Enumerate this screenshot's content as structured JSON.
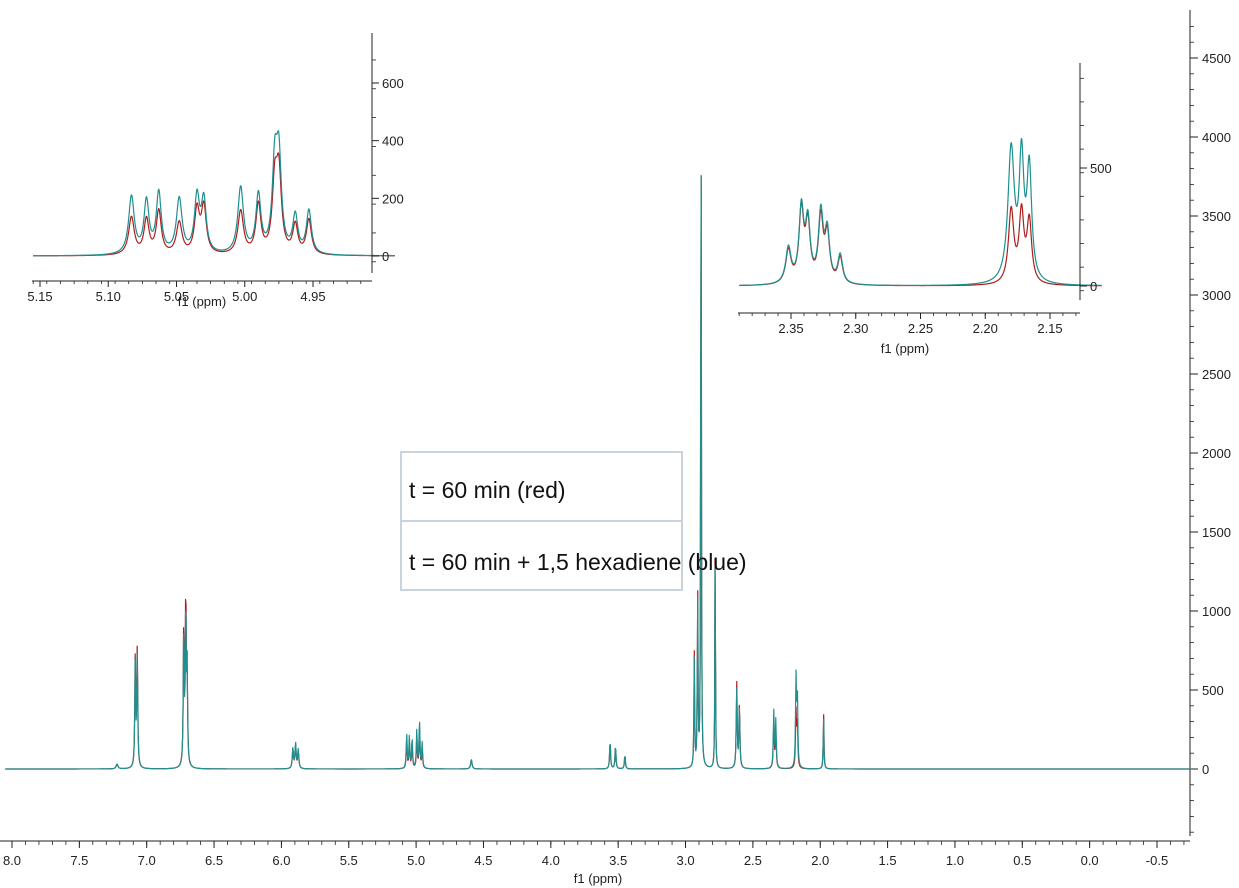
{
  "chart_data": [
    {
      "type": "line",
      "role": "main-spectrum",
      "xlabel": "f1 (ppm)",
      "ylabel": "",
      "xlim": [
        8.05,
        -0.75
      ],
      "ylim": [
        -500,
        4800
      ],
      "x_ticks": [
        "8.0",
        "7.5",
        "7.0",
        "6.5",
        "6.0",
        "5.5",
        "5.0",
        "4.5",
        "4.0",
        "3.5",
        "3.0",
        "2.5",
        "2.0",
        "1.5",
        "1.0",
        "0.5",
        "0.0",
        "-0.5"
      ],
      "y_ticks": [
        "0",
        "500",
        "1000",
        "1500",
        "2000",
        "2500",
        "3000",
        "3500",
        "4000",
        "4500"
      ],
      "y_axis_side": "right",
      "series": [
        {
          "name": "t = 60 min (red)",
          "color": "#b01c1c",
          "peaks": [
            {
              "x": 7.22,
              "y": 30,
              "w": 0.008
            },
            {
              "x": 7.085,
              "y": 700,
              "w": 0.004
            },
            {
              "x": 7.07,
              "y": 770,
              "w": 0.004
            },
            {
              "x": 6.725,
              "y": 910,
              "w": 0.004
            },
            {
              "x": 6.71,
              "y": 1100,
              "w": 0.004
            },
            {
              "x": 6.7,
              "y": 570,
              "w": 0.004
            },
            {
              "x": 5.915,
              "y": 120,
              "w": 0.005
            },
            {
              "x": 5.895,
              "y": 150,
              "w": 0.005
            },
            {
              "x": 5.875,
              "y": 110,
              "w": 0.005
            },
            {
              "x": 5.07,
              "y": 180,
              "w": 0.004
            },
            {
              "x": 5.05,
              "y": 170,
              "w": 0.004
            },
            {
              "x": 5.03,
              "y": 160,
              "w": 0.004
            },
            {
              "x": 4.995,
              "y": 190,
              "w": 0.004
            },
            {
              "x": 4.975,
              "y": 260,
              "w": 0.004
            },
            {
              "x": 4.955,
              "y": 130,
              "w": 0.004
            },
            {
              "x": 4.59,
              "y": 60,
              "w": 0.006
            },
            {
              "x": 3.56,
              "y": 180,
              "w": 0.004
            },
            {
              "x": 3.52,
              "y": 150,
              "w": 0.004
            },
            {
              "x": 3.45,
              "y": 90,
              "w": 0.004
            },
            {
              "x": 2.935,
              "y": 720,
              "w": 0.003
            },
            {
              "x": 2.91,
              "y": 1120,
              "w": 0.003
            },
            {
              "x": 2.885,
              "y": 4800,
              "w": 0.0025
            },
            {
              "x": 2.78,
              "y": 1540,
              "w": 0.0025
            },
            {
              "x": 2.62,
              "y": 540,
              "w": 0.004
            },
            {
              "x": 2.6,
              "y": 420,
              "w": 0.004
            },
            {
              "x": 2.345,
              "y": 300,
              "w": 0.004
            },
            {
              "x": 2.33,
              "y": 250,
              "w": 0.004
            },
            {
              "x": 2.18,
              "y": 350,
              "w": 0.004
            },
            {
              "x": 2.17,
              "y": 310,
              "w": 0.004
            },
            {
              "x": 1.975,
              "y": 360,
              "w": 0.003
            }
          ]
        },
        {
          "name": "t = 60 min + 1,5 hexadiene (blue)",
          "color": "#1f8f8f",
          "peaks": [
            {
              "x": 7.22,
              "y": 30,
              "w": 0.008
            },
            {
              "x": 7.085,
              "y": 660,
              "w": 0.004
            },
            {
              "x": 7.07,
              "y": 720,
              "w": 0.004
            },
            {
              "x": 6.725,
              "y": 870,
              "w": 0.004
            },
            {
              "x": 6.71,
              "y": 1020,
              "w": 0.004
            },
            {
              "x": 6.7,
              "y": 530,
              "w": 0.004
            },
            {
              "x": 5.915,
              "y": 130,
              "w": 0.005
            },
            {
              "x": 5.895,
              "y": 160,
              "w": 0.005
            },
            {
              "x": 5.875,
              "y": 120,
              "w": 0.005
            },
            {
              "x": 5.07,
              "y": 220,
              "w": 0.004
            },
            {
              "x": 5.05,
              "y": 200,
              "w": 0.004
            },
            {
              "x": 5.03,
              "y": 190,
              "w": 0.004
            },
            {
              "x": 4.995,
              "y": 240,
              "w": 0.004
            },
            {
              "x": 4.975,
              "y": 310,
              "w": 0.004
            },
            {
              "x": 4.955,
              "y": 160,
              "w": 0.004
            },
            {
              "x": 4.59,
              "y": 60,
              "w": 0.006
            },
            {
              "x": 3.56,
              "y": 180,
              "w": 0.004
            },
            {
              "x": 3.52,
              "y": 150,
              "w": 0.004
            },
            {
              "x": 3.45,
              "y": 90,
              "w": 0.004
            },
            {
              "x": 2.935,
              "y": 680,
              "w": 0.003
            },
            {
              "x": 2.91,
              "y": 1080,
              "w": 0.003
            },
            {
              "x": 2.885,
              "y": 4800,
              "w": 0.0025
            },
            {
              "x": 2.78,
              "y": 1480,
              "w": 0.0025
            },
            {
              "x": 2.62,
              "y": 500,
              "w": 0.004
            },
            {
              "x": 2.6,
              "y": 400,
              "w": 0.004
            },
            {
              "x": 2.345,
              "y": 360,
              "w": 0.004
            },
            {
              "x": 2.33,
              "y": 300,
              "w": 0.004
            },
            {
              "x": 2.18,
              "y": 560,
              "w": 0.004
            },
            {
              "x": 2.17,
              "y": 480,
              "w": 0.004
            },
            {
              "x": 1.975,
              "y": 330,
              "w": 0.003
            }
          ]
        }
      ]
    },
    {
      "type": "line",
      "role": "inset-left",
      "xlabel": "f1 (ppm)",
      "xlim": [
        5.155,
        4.89
      ],
      "ylim": [
        -40,
        760
      ],
      "x_ticks": [
        "5.15",
        "5.10",
        "5.05",
        "5.00",
        "4.95"
      ],
      "y_ticks": [
        "0",
        "200",
        "400",
        "600"
      ],
      "series": [
        {
          "name": "t = 60 min (red)",
          "color": "#b01c1c",
          "peaks": [
            {
              "x": 5.083,
              "y": 130,
              "w": 0.0025
            },
            {
              "x": 5.072,
              "y": 120,
              "w": 0.0022
            },
            {
              "x": 5.063,
              "y": 150,
              "w": 0.0022
            },
            {
              "x": 5.048,
              "y": 110,
              "w": 0.0025
            },
            {
              "x": 5.035,
              "y": 150,
              "w": 0.0022
            },
            {
              "x": 5.03,
              "y": 160,
              "w": 0.0022
            },
            {
              "x": 5.003,
              "y": 150,
              "w": 0.0025
            },
            {
              "x": 4.99,
              "y": 170,
              "w": 0.0022
            },
            {
              "x": 4.978,
              "y": 230,
              "w": 0.0022
            },
            {
              "x": 4.975,
              "y": 260,
              "w": 0.0022
            },
            {
              "x": 4.963,
              "y": 100,
              "w": 0.0022
            },
            {
              "x": 4.953,
              "y": 120,
              "w": 0.0022
            }
          ]
        },
        {
          "name": "t = 60 min + 1,5 hexadiene (blue)",
          "color": "#1f8f8f",
          "peaks": [
            {
              "x": 5.083,
              "y": 200,
              "w": 0.0025
            },
            {
              "x": 5.072,
              "y": 180,
              "w": 0.0022
            },
            {
              "x": 5.063,
              "y": 210,
              "w": 0.0022
            },
            {
              "x": 5.048,
              "y": 190,
              "w": 0.0025
            },
            {
              "x": 5.035,
              "y": 190,
              "w": 0.0022
            },
            {
              "x": 5.03,
              "y": 180,
              "w": 0.0022
            },
            {
              "x": 5.003,
              "y": 230,
              "w": 0.0025
            },
            {
              "x": 4.99,
              "y": 200,
              "w": 0.0022
            },
            {
              "x": 4.978,
              "y": 290,
              "w": 0.0022
            },
            {
              "x": 4.975,
              "y": 310,
              "w": 0.0022
            },
            {
              "x": 4.963,
              "y": 130,
              "w": 0.0022
            },
            {
              "x": 4.953,
              "y": 150,
              "w": 0.0022
            }
          ]
        }
      ]
    },
    {
      "type": "line",
      "role": "inset-right",
      "xlabel": "f1 (ppm)",
      "xlim": [
        2.39,
        2.11
      ],
      "ylim": [
        -40,
        920
      ],
      "x_ticks": [
        "2.35",
        "2.30",
        "2.25",
        "2.20",
        "2.15"
      ],
      "y_ticks": [
        "0",
        "500"
      ],
      "series": [
        {
          "name": "t = 60 min (red)",
          "color": "#b01c1c",
          "peaks": [
            {
              "x": 2.352,
              "y": 140,
              "w": 0.0025
            },
            {
              "x": 2.342,
              "y": 300,
              "w": 0.0022
            },
            {
              "x": 2.337,
              "y": 240,
              "w": 0.0022
            },
            {
              "x": 2.327,
              "y": 270,
              "w": 0.0022
            },
            {
              "x": 2.322,
              "y": 200,
              "w": 0.0022
            },
            {
              "x": 2.312,
              "y": 110,
              "w": 0.0022
            },
            {
              "x": 2.18,
              "y": 310,
              "w": 0.0025
            },
            {
              "x": 2.172,
              "y": 290,
              "w": 0.0022
            },
            {
              "x": 2.166,
              "y": 260,
              "w": 0.0022
            }
          ]
        },
        {
          "name": "t = 60 min + 1,5 hexadiene (blue)",
          "color": "#1f8f8f",
          "peaks": [
            {
              "x": 2.352,
              "y": 150,
              "w": 0.0025
            },
            {
              "x": 2.342,
              "y": 310,
              "w": 0.0022
            },
            {
              "x": 2.337,
              "y": 250,
              "w": 0.0022
            },
            {
              "x": 2.327,
              "y": 290,
              "w": 0.0022
            },
            {
              "x": 2.322,
              "y": 210,
              "w": 0.0022
            },
            {
              "x": 2.312,
              "y": 120,
              "w": 0.0022
            },
            {
              "x": 2.18,
              "y": 560,
              "w": 0.003
            },
            {
              "x": 2.172,
              "y": 500,
              "w": 0.0022
            },
            {
              "x": 2.166,
              "y": 470,
              "w": 0.0022
            }
          ]
        }
      ]
    }
  ],
  "legend": {
    "red_label": "t = 60 min (red)",
    "blue_label": "t = 60 min + 1,5 hexadiene (blue)"
  }
}
